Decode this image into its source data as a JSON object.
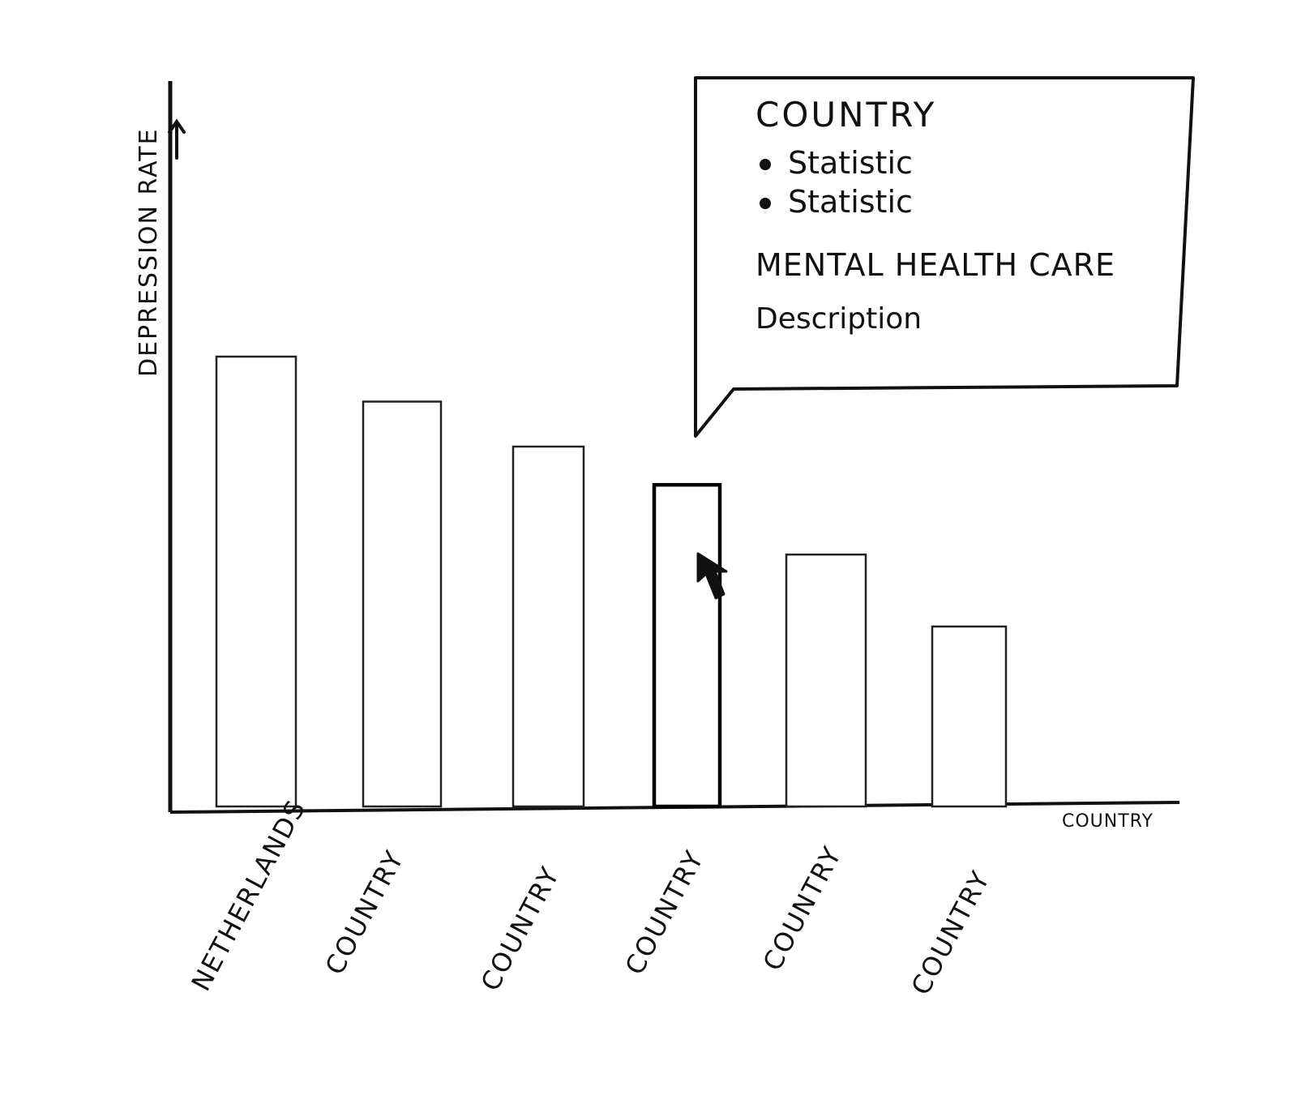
{
  "chart_data": {
    "type": "bar",
    "xlabel": "COUNTRY",
    "ylabel": "DEPRESSION RATE",
    "categories": [
      "NETHERLANDS",
      "COUNTRY",
      "COUNTRY",
      "COUNTRY",
      "COUNTRY",
      "COUNTRY"
    ],
    "values": [
      100,
      90,
      80,
      71.5,
      56,
      40
    ],
    "ylim": [
      0,
      100
    ],
    "grid": false,
    "hovered_index": 3
  },
  "tooltip": {
    "title": "COUNTRY",
    "stats": [
      "Statistic",
      "Statistic"
    ],
    "section_heading": "MENTAL HEALTH CARE",
    "description": "Description"
  },
  "cursor": {
    "icon": "arrow-cursor-icon"
  }
}
